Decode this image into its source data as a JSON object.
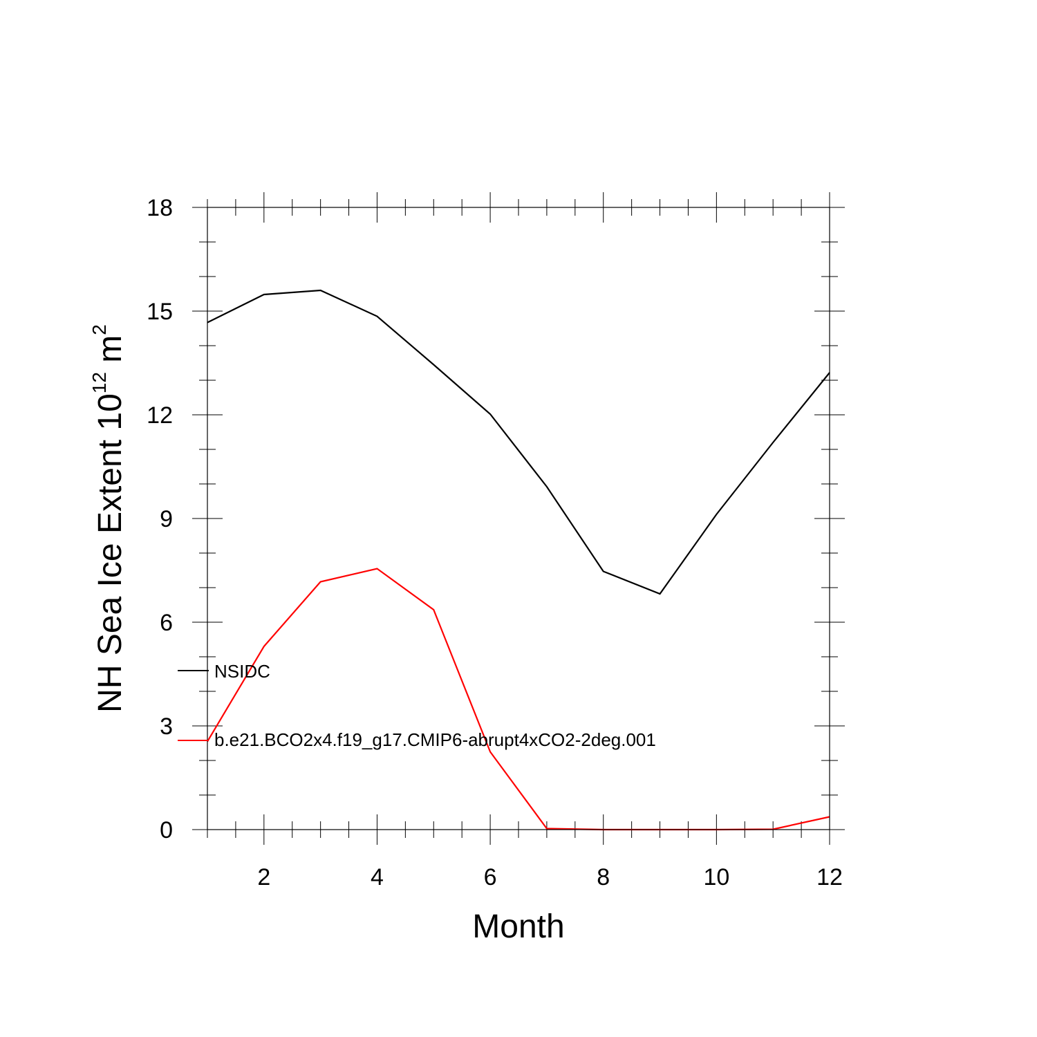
{
  "chart_data": {
    "type": "line",
    "xlabel": "Month",
    "ylabel": {
      "text": "NH Sea Ice Extent 10",
      "exp": "12",
      "unit": " m",
      "unit_exp": "2"
    },
    "xlim": [
      1,
      12
    ],
    "ylim": [
      0,
      18
    ],
    "x_ticks": [
      2,
      4,
      6,
      8,
      10,
      12
    ],
    "y_ticks": [
      0,
      3,
      6,
      9,
      12,
      15,
      18
    ],
    "grid": false,
    "legend_position": "left-inside",
    "x": [
      1,
      2,
      3,
      4,
      5,
      6,
      7,
      8,
      9,
      10,
      11,
      12
    ],
    "series": [
      {
        "name": "NSIDC",
        "color": "#000000",
        "values": [
          14.67,
          15.48,
          15.6,
          14.85,
          13.45,
          12.02,
          9.92,
          7.47,
          6.82,
          9.12,
          11.2,
          13.22
        ]
      },
      {
        "name": "b.e21.BCO2x4.f19_g17.CMIP6-abrupt4xCO2-2deg.001",
        "color": "#ff0000",
        "values": [
          2.55,
          5.3,
          7.17,
          7.55,
          6.36,
          2.25,
          0.03,
          0.0,
          0.0,
          0.0,
          0.01,
          0.37
        ]
      }
    ]
  }
}
